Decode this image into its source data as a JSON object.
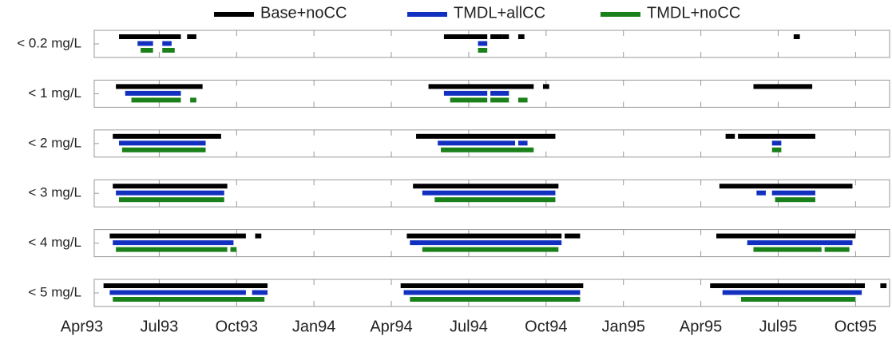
{
  "chart_data": {
    "type": "timeline",
    "series": [
      {
        "name": "Base+noCC",
        "color": "#000000"
      },
      {
        "name": "TMDL+allCC",
        "color": "#1230c0"
      },
      {
        "name": "TMDL+noCC",
        "color": "#1a8019"
      }
    ],
    "xlim": [
      1993.29,
      1995.86
    ],
    "xticks": [
      {
        "value": 1993.25,
        "label": "Apr93"
      },
      {
        "value": 1993.5,
        "label": "Jul93"
      },
      {
        "value": 1993.75,
        "label": "Oct93"
      },
      {
        "value": 1994.0,
        "label": "Jan94"
      },
      {
        "value": 1994.25,
        "label": "Apr94"
      },
      {
        "value": 1994.5,
        "label": "Jul94"
      },
      {
        "value": 1994.75,
        "label": "Oct94"
      },
      {
        "value": 1995.0,
        "label": "Jan95"
      },
      {
        "value": 1995.25,
        "label": "Apr95"
      },
      {
        "value": 1995.5,
        "label": "Jul95"
      },
      {
        "value": 1995.75,
        "label": "Oct95"
      }
    ],
    "panels": [
      {
        "label": "< 0.2 mg/L",
        "intervals": [
          [
            [
              1993.37,
              1993.57
            ],
            [
              1993.59,
              1993.62
            ],
            [
              1994.42,
              1994.56
            ],
            [
              1994.57,
              1994.61
            ],
            [
              1994.61,
              1994.63
            ],
            [
              1994.66,
              1994.68
            ],
            [
              1995.55,
              1995.57
            ]
          ],
          [
            [
              1993.43,
              1993.48
            ],
            [
              1993.51,
              1993.54
            ],
            [
              1994.53,
              1994.56
            ]
          ],
          [
            [
              1993.44,
              1993.48
            ],
            [
              1993.51,
              1993.55
            ],
            [
              1994.53,
              1994.56
            ]
          ]
        ]
      },
      {
        "label": "< 1 mg/L",
        "intervals": [
          [
            [
              1993.36,
              1993.64
            ],
            [
              1994.37,
              1994.71
            ],
            [
              1994.74,
              1994.76
            ],
            [
              1995.42,
              1995.61
            ]
          ],
          [
            [
              1993.39,
              1993.57
            ],
            [
              1994.42,
              1994.56
            ],
            [
              1994.57,
              1994.63
            ]
          ],
          [
            [
              1993.41,
              1993.57
            ],
            [
              1993.6,
              1993.62
            ],
            [
              1994.44,
              1994.56
            ],
            [
              1994.57,
              1994.63
            ],
            [
              1994.66,
              1994.69
            ]
          ]
        ]
      },
      {
        "label": "< 2 mg/L",
        "intervals": [
          [
            [
              1993.35,
              1993.7
            ],
            [
              1994.33,
              1994.78
            ],
            [
              1995.33,
              1995.36
            ],
            [
              1995.37,
              1995.62
            ]
          ],
          [
            [
              1993.37,
              1993.65
            ],
            [
              1994.4,
              1994.65
            ],
            [
              1994.66,
              1994.69
            ],
            [
              1995.48,
              1995.51
            ]
          ],
          [
            [
              1993.38,
              1993.65
            ],
            [
              1994.41,
              1994.71
            ],
            [
              1995.48,
              1995.51
            ]
          ]
        ]
      },
      {
        "label": "< 3 mg/L",
        "intervals": [
          [
            [
              1993.35,
              1993.72
            ],
            [
              1994.32,
              1994.79
            ],
            [
              1995.31,
              1995.74
            ]
          ],
          [
            [
              1993.36,
              1993.71
            ],
            [
              1994.35,
              1994.78
            ],
            [
              1995.43,
              1995.46
            ],
            [
              1995.48,
              1995.62
            ]
          ],
          [
            [
              1993.37,
              1993.71
            ],
            [
              1994.39,
              1994.78
            ],
            [
              1995.49,
              1995.62
            ]
          ]
        ]
      },
      {
        "label": "< 4 mg/L",
        "intervals": [
          [
            [
              1993.34,
              1993.78
            ],
            [
              1993.81,
              1993.83
            ],
            [
              1994.3,
              1994.8
            ],
            [
              1994.81,
              1994.86
            ],
            [
              1995.3,
              1995.75
            ]
          ],
          [
            [
              1993.35,
              1993.74
            ],
            [
              1994.31,
              1994.8
            ],
            [
              1995.4,
              1995.74
            ]
          ],
          [
            [
              1993.36,
              1993.72
            ],
            [
              1993.73,
              1993.75
            ],
            [
              1994.35,
              1994.79
            ],
            [
              1995.42,
              1995.64
            ],
            [
              1995.65,
              1995.73
            ]
          ]
        ]
      },
      {
        "label": "< 5 mg/L",
        "intervals": [
          [
            [
              1993.32,
              1993.85
            ],
            [
              1994.28,
              1994.87
            ],
            [
              1995.28,
              1995.78
            ],
            [
              1995.83,
              1995.85
            ]
          ],
          [
            [
              1993.34,
              1993.78
            ],
            [
              1993.8,
              1993.85
            ],
            [
              1994.29,
              1994.86
            ],
            [
              1995.32,
              1995.77
            ]
          ],
          [
            [
              1993.35,
              1993.84
            ],
            [
              1994.31,
              1994.86
            ],
            [
              1995.38,
              1995.75
            ]
          ]
        ]
      }
    ]
  }
}
